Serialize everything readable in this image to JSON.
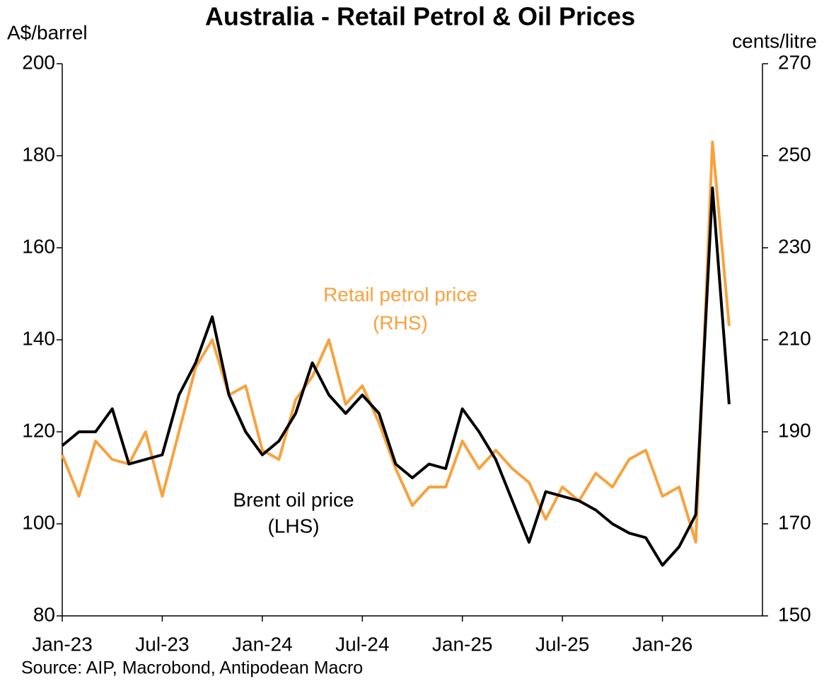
{
  "chart_data": {
    "type": "line",
    "title": "Australia - Retail Petrol & Oil Prices",
    "y_label": "A$/barrel",
    "y2_label": "cents/litre",
    "source": "Source: AIP, Macrobond, Antipodean Macro",
    "annotations": [
      {
        "lines": [
          "Retail petrol price",
          "(RHS)"
        ],
        "color": "#f7a23e"
      },
      {
        "lines": [
          "Brent oil price",
          "(LHS)"
        ],
        "color": "#000000"
      }
    ],
    "x": [
      "2023-01",
      "2023-02",
      "2023-03",
      "2023-04",
      "2023-05",
      "2023-06",
      "2023-07",
      "2023-08",
      "2023-09",
      "2023-10",
      "2023-11",
      "2023-12",
      "2024-01",
      "2024-02",
      "2024-03",
      "2024-04",
      "2024-05",
      "2024-06",
      "2024-07",
      "2024-08",
      "2024-09",
      "2024-10",
      "2024-11",
      "2024-12",
      "2025-01",
      "2025-02",
      "2025-03",
      "2025-04",
      "2025-05",
      "2025-06",
      "2025-07",
      "2025-08",
      "2025-09",
      "2025-10",
      "2025-11",
      "2025-12",
      "2026-01",
      "2026-02",
      "2026-03",
      "2026-04",
      "2026-05"
    ],
    "xlim": [
      "2023-01",
      "2026-07"
    ],
    "xticks": [
      {
        "value": "2023-01",
        "label": "Jan-23"
      },
      {
        "value": "2023-07",
        "label": "Jul-23"
      },
      {
        "value": "2024-01",
        "label": "Jan-24"
      },
      {
        "value": "2024-07",
        "label": "Jul-24"
      },
      {
        "value": "2025-01",
        "label": "Jan-25"
      },
      {
        "value": "2025-07",
        "label": "Jul-25"
      },
      {
        "value": "2026-01",
        "label": "Jan-26"
      }
    ],
    "ylim": [
      80,
      200
    ],
    "yticks": [
      80,
      100,
      120,
      140,
      160,
      180,
      200
    ],
    "y2lim": [
      150,
      270
    ],
    "y2ticks": [
      150,
      170,
      190,
      210,
      230,
      250,
      270
    ],
    "series": [
      {
        "name": "Brent oil price",
        "color": "#000000",
        "axis": "y",
        "values": [
          117,
          120,
          120,
          125,
          113,
          114,
          115,
          128,
          135,
          145,
          128,
          120,
          115,
          118,
          124,
          135,
          128,
          124,
          128,
          124,
          113,
          110,
          113,
          112,
          125,
          120,
          114,
          105,
          96,
          107,
          106,
          105,
          103,
          100,
          98,
          97,
          91,
          95,
          102,
          173,
          126
        ]
      },
      {
        "name": "Retail petrol price",
        "color": "#f7a23e",
        "axis": "y2",
        "values": [
          185,
          176,
          188,
          184,
          183,
          190,
          176,
          190,
          204,
          210,
          198,
          200,
          186,
          184,
          197,
          202,
          210,
          196,
          200,
          192,
          182,
          174,
          178,
          178,
          188,
          182,
          186,
          182,
          179,
          171,
          178,
          175,
          181,
          178,
          184,
          186,
          176,
          178,
          166,
          253,
          213
        ]
      }
    ]
  }
}
